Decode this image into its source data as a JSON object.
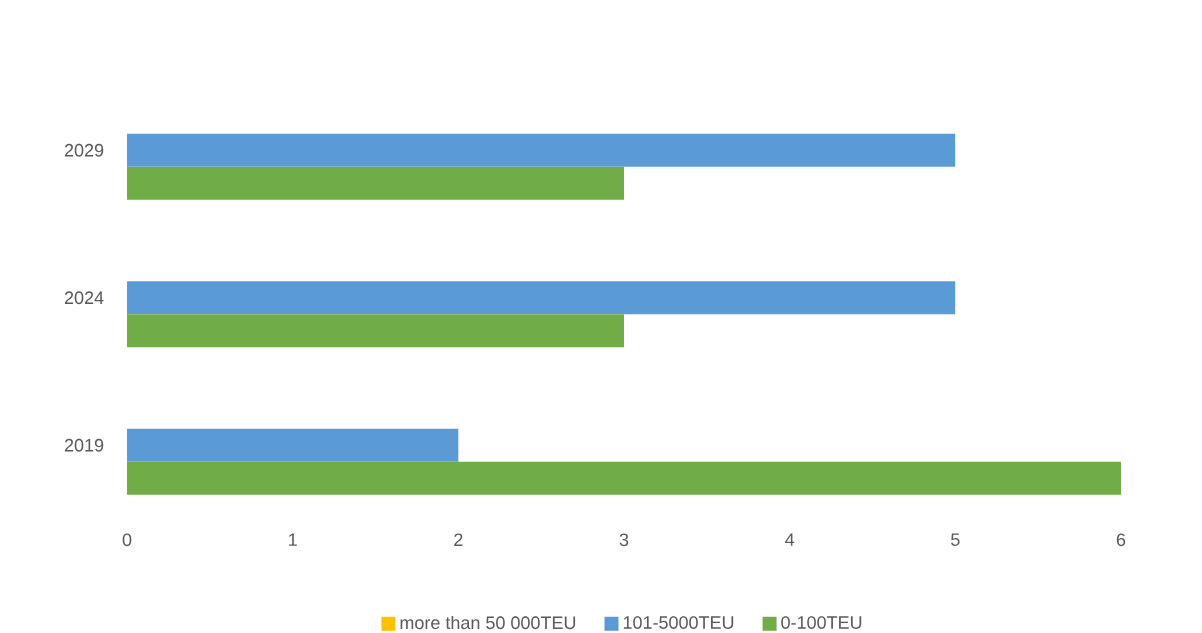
{
  "chart_data": {
    "type": "bar",
    "orientation": "horizontal",
    "categories": [
      "2029",
      "2024",
      "2019"
    ],
    "series": [
      {
        "name": "more than 50 000TEU",
        "color": "#ffc000",
        "values": [
          0,
          0,
          0
        ]
      },
      {
        "name": "101-5000TEU",
        "color": "#5b9bd5",
        "values": [
          5,
          5,
          2
        ]
      },
      {
        "name": "0-100TEU",
        "color": "#70ad47",
        "values": [
          3,
          3,
          6
        ]
      }
    ],
    "xlim": [
      0,
      6
    ],
    "xticks": [
      0,
      1,
      2,
      3,
      4,
      5,
      6
    ],
    "legend": "bottom"
  }
}
